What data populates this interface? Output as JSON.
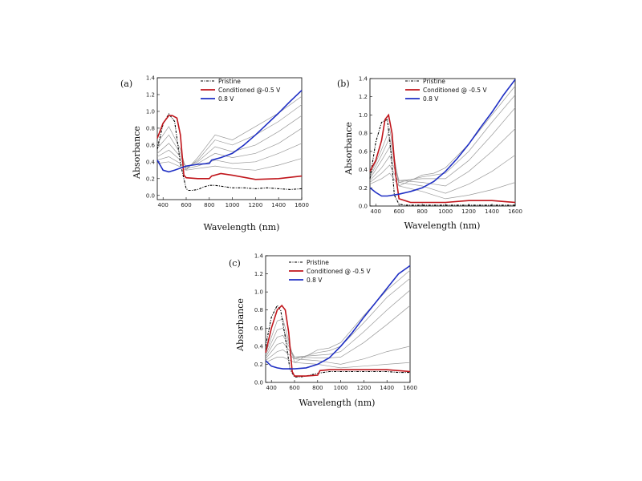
{
  "chart_data": [
    {
      "panel": "(a)",
      "type": "line",
      "xlabel": "Wavelength (nm)",
      "ylabel": "Absorbance",
      "xlim": [
        350,
        1600
      ],
      "ylim": [
        -0.05,
        1.4
      ],
      "xticks": [
        400,
        600,
        800,
        1000,
        1200,
        1400,
        1600
      ],
      "yticks": [
        0.0,
        0.2,
        0.4,
        0.6,
        0.8,
        1.0,
        1.2,
        1.4
      ],
      "legend_position": "top-center",
      "series": [
        {
          "name": "Pristine",
          "color": "#000000",
          "style": "dash-dot",
          "x": [
            350,
            400,
            450,
            500,
            550,
            600,
            620,
            650,
            700,
            750,
            800,
            850,
            900,
            950,
            1000,
            1100,
            1200,
            1300,
            1400,
            1500,
            1600
          ],
          "y": [
            0.55,
            0.85,
            0.97,
            0.88,
            0.38,
            0.08,
            0.06,
            0.06,
            0.07,
            0.1,
            0.12,
            0.12,
            0.11,
            0.1,
            0.09,
            0.09,
            0.08,
            0.09,
            0.08,
            0.07,
            0.08
          ]
        },
        {
          "name": "Conditioned @-0.5 V",
          "color": "#c0151b",
          "style": "solid",
          "x": [
            350,
            400,
            450,
            480,
            520,
            550,
            570,
            580,
            600,
            700,
            800,
            820,
            900,
            1000,
            1200,
            1400,
            1600
          ],
          "y": [
            0.68,
            0.86,
            0.95,
            0.95,
            0.92,
            0.72,
            0.4,
            0.24,
            0.21,
            0.2,
            0.2,
            0.23,
            0.26,
            0.24,
            0.19,
            0.2,
            0.23
          ]
        },
        {
          "name": "0.8 V",
          "color": "#1f2fc4",
          "style": "solid",
          "x": [
            350,
            400,
            450,
            500,
            600,
            700,
            800,
            820,
            900,
            1000,
            1100,
            1200,
            1300,
            1400,
            1500,
            1600
          ],
          "y": [
            0.42,
            0.3,
            0.28,
            0.3,
            0.35,
            0.37,
            0.38,
            0.42,
            0.45,
            0.5,
            0.6,
            0.72,
            0.85,
            0.98,
            1.12,
            1.25
          ]
        }
      ],
      "intermediate_series": [
        {
          "x": [
            350,
            450,
            550,
            600,
            700,
            850,
            1000,
            1200,
            1400,
            1600
          ],
          "y": [
            0.62,
            0.82,
            0.55,
            0.3,
            0.45,
            0.72,
            0.66,
            0.82,
            0.98,
            1.18
          ]
        },
        {
          "x": [
            350,
            450,
            550,
            600,
            700,
            850,
            1000,
            1200,
            1400,
            1600
          ],
          "y": [
            0.56,
            0.72,
            0.5,
            0.32,
            0.42,
            0.66,
            0.6,
            0.72,
            0.88,
            1.08
          ]
        },
        {
          "x": [
            350,
            450,
            550,
            600,
            700,
            850,
            1000,
            1200,
            1400,
            1600
          ],
          "y": [
            0.5,
            0.62,
            0.46,
            0.34,
            0.4,
            0.58,
            0.52,
            0.6,
            0.76,
            0.95
          ]
        },
        {
          "x": [
            350,
            450,
            550,
            600,
            700,
            850,
            1000,
            1200,
            1400,
            1600
          ],
          "y": [
            0.46,
            0.54,
            0.42,
            0.34,
            0.38,
            0.5,
            0.45,
            0.5,
            0.62,
            0.8
          ]
        },
        {
          "x": [
            350,
            450,
            550,
            600,
            700,
            850,
            1000,
            1200,
            1400,
            1600
          ],
          "y": [
            0.42,
            0.46,
            0.38,
            0.32,
            0.35,
            0.42,
            0.38,
            0.4,
            0.5,
            0.62
          ]
        },
        {
          "x": [
            350,
            450,
            550,
            600,
            700,
            850,
            1000,
            1200,
            1400,
            1600
          ],
          "y": [
            0.38,
            0.4,
            0.34,
            0.3,
            0.32,
            0.35,
            0.32,
            0.3,
            0.36,
            0.44
          ]
        }
      ]
    },
    {
      "panel": "(b)",
      "type": "line",
      "xlabel": "Wavelength (nm)",
      "ylabel": "Absorbance",
      "xlim": [
        350,
        1600
      ],
      "ylim": [
        0.0,
        1.4
      ],
      "xticks": [
        400,
        600,
        800,
        1000,
        1200,
        1400,
        1600
      ],
      "yticks": [
        0.0,
        0.2,
        0.4,
        0.6,
        0.8,
        1.0,
        1.2,
        1.4
      ],
      "legend_position": "top-center",
      "series": [
        {
          "name": "Pristine",
          "color": "#000000",
          "style": "dash-dot",
          "x": [
            350,
            400,
            450,
            500,
            530,
            560,
            600,
            650,
            700,
            800,
            900,
            1000,
            1100,
            1200,
            1300,
            1400,
            1500,
            1600
          ],
          "y": [
            0.3,
            0.7,
            0.92,
            0.95,
            0.6,
            0.12,
            0.02,
            0.01,
            0.01,
            0.01,
            0.01,
            0.01,
            0.01,
            0.01,
            0.01,
            0.01,
            0.01,
            0.01
          ]
        },
        {
          "name": "Conditioned @ -0.5 V",
          "color": "#c0151b",
          "style": "solid",
          "x": [
            350,
            400,
            450,
            480,
            510,
            540,
            570,
            600,
            700,
            800,
            900,
            1000,
            1200,
            1400,
            1600
          ],
          "y": [
            0.38,
            0.5,
            0.72,
            0.95,
            1.0,
            0.8,
            0.35,
            0.08,
            0.04,
            0.04,
            0.04,
            0.04,
            0.06,
            0.06,
            0.04
          ]
        },
        {
          "name": "0.8 V",
          "color": "#1f2fc4",
          "style": "solid",
          "x": [
            350,
            400,
            450,
            500,
            600,
            700,
            800,
            900,
            1000,
            1100,
            1200,
            1300,
            1400,
            1500,
            1600
          ],
          "y": [
            0.2,
            0.15,
            0.11,
            0.11,
            0.13,
            0.16,
            0.2,
            0.27,
            0.38,
            0.52,
            0.68,
            0.86,
            1.03,
            1.22,
            1.39
          ]
        }
      ],
      "intermediate_series": [
        {
          "x": [
            350,
            450,
            520,
            600,
            800,
            900,
            1000,
            1200,
            1400,
            1600
          ],
          "y": [
            0.34,
            0.62,
            0.85,
            0.22,
            0.34,
            0.36,
            0.42,
            0.68,
            1.0,
            1.32
          ]
        },
        {
          "x": [
            350,
            450,
            520,
            600,
            800,
            900,
            1000,
            1200,
            1400,
            1600
          ],
          "y": [
            0.32,
            0.56,
            0.75,
            0.26,
            0.32,
            0.34,
            0.36,
            0.6,
            0.92,
            1.22
          ]
        },
        {
          "x": [
            350,
            450,
            520,
            600,
            800,
            900,
            1000,
            1200,
            1400,
            1600
          ],
          "y": [
            0.3,
            0.5,
            0.65,
            0.28,
            0.3,
            0.3,
            0.3,
            0.5,
            0.78,
            1.08
          ]
        },
        {
          "x": [
            350,
            450,
            520,
            600,
            800,
            900,
            1000,
            1200,
            1400,
            1600
          ],
          "y": [
            0.28,
            0.42,
            0.55,
            0.28,
            0.26,
            0.24,
            0.22,
            0.38,
            0.6,
            0.85
          ]
        },
        {
          "x": [
            350,
            450,
            520,
            600,
            800,
            900,
            1000,
            1200,
            1400,
            1600
          ],
          "y": [
            0.26,
            0.36,
            0.45,
            0.26,
            0.22,
            0.18,
            0.14,
            0.24,
            0.38,
            0.56
          ]
        },
        {
          "x": [
            350,
            450,
            520,
            600,
            800,
            900,
            1000,
            1200,
            1400,
            1600
          ],
          "y": [
            0.24,
            0.3,
            0.36,
            0.22,
            0.16,
            0.12,
            0.08,
            0.12,
            0.18,
            0.26
          ]
        }
      ]
    },
    {
      "panel": "(c)",
      "type": "line",
      "xlabel": "Wavelength (nm)",
      "ylabel": "Absorbance",
      "xlim": [
        350,
        1600
      ],
      "ylim": [
        0.0,
        1.4
      ],
      "xticks": [
        400,
        600,
        800,
        1000,
        1200,
        1400,
        1600
      ],
      "yticks": [
        0.0,
        0.2,
        0.4,
        0.6,
        0.8,
        1.0,
        1.2,
        1.4
      ],
      "legend_position": "top-center",
      "series": [
        {
          "name": "Pristine",
          "color": "#000000",
          "style": "dash-dot",
          "x": [
            350,
            400,
            450,
            480,
            520,
            560,
            600,
            650,
            700,
            800,
            900,
            1000,
            1100,
            1200,
            1300,
            1400,
            1500,
            1600
          ],
          "y": [
            0.4,
            0.72,
            0.85,
            0.8,
            0.5,
            0.15,
            0.06,
            0.06,
            0.07,
            0.1,
            0.12,
            0.12,
            0.12,
            0.12,
            0.12,
            0.12,
            0.11,
            0.11
          ]
        },
        {
          "name": "Conditioned @ -0.5 V",
          "color": "#c0151b",
          "style": "solid",
          "x": [
            350,
            400,
            450,
            490,
            520,
            550,
            580,
            600,
            700,
            800,
            820,
            900,
            1000,
            1200,
            1400,
            1600
          ],
          "y": [
            0.33,
            0.6,
            0.8,
            0.85,
            0.8,
            0.55,
            0.12,
            0.07,
            0.07,
            0.08,
            0.13,
            0.14,
            0.14,
            0.14,
            0.14,
            0.12
          ]
        },
        {
          "name": "0.8 V",
          "color": "#1f2fc4",
          "style": "solid",
          "x": [
            350,
            400,
            450,
            500,
            600,
            700,
            800,
            900,
            1000,
            1100,
            1200,
            1300,
            1400,
            1500,
            1600
          ],
          "y": [
            0.24,
            0.18,
            0.16,
            0.15,
            0.15,
            0.16,
            0.2,
            0.27,
            0.4,
            0.55,
            0.72,
            0.88,
            1.04,
            1.2,
            1.29
          ]
        }
      ],
      "intermediate_series": [
        {
          "x": [
            350,
            450,
            500,
            600,
            800,
            900,
            1000,
            1200,
            1400,
            1600
          ],
          "y": [
            0.32,
            0.68,
            0.7,
            0.22,
            0.36,
            0.38,
            0.44,
            0.74,
            1.02,
            1.24
          ]
        },
        {
          "x": [
            350,
            450,
            500,
            600,
            800,
            900,
            1000,
            1200,
            1400,
            1600
          ],
          "y": [
            0.3,
            0.58,
            0.6,
            0.26,
            0.33,
            0.35,
            0.4,
            0.66,
            0.94,
            1.15
          ]
        },
        {
          "x": [
            350,
            450,
            500,
            600,
            800,
            900,
            1000,
            1200,
            1400,
            1600
          ],
          "y": [
            0.28,
            0.5,
            0.52,
            0.28,
            0.3,
            0.31,
            0.34,
            0.56,
            0.8,
            1.02
          ]
        },
        {
          "x": [
            350,
            450,
            500,
            600,
            800,
            900,
            1000,
            1200,
            1400,
            1600
          ],
          "y": [
            0.26,
            0.42,
            0.44,
            0.28,
            0.27,
            0.27,
            0.28,
            0.44,
            0.64,
            0.85
          ]
        },
        {
          "x": [
            350,
            450,
            500,
            600,
            800,
            900,
            1000,
            1200,
            1400,
            1600
          ],
          "y": [
            0.24,
            0.34,
            0.36,
            0.26,
            0.24,
            0.22,
            0.2,
            0.26,
            0.34,
            0.4
          ]
        },
        {
          "x": [
            350,
            450,
            500,
            600,
            800,
            900,
            1000,
            1200,
            1400,
            1600
          ],
          "y": [
            0.22,
            0.28,
            0.28,
            0.22,
            0.2,
            0.18,
            0.16,
            0.18,
            0.2,
            0.22
          ]
        }
      ]
    }
  ],
  "colors": {
    "pristine": "#000000",
    "conditioned": "#c0151b",
    "oxidized": "#1f2fc4",
    "intermediate": "#9a9a9a"
  }
}
